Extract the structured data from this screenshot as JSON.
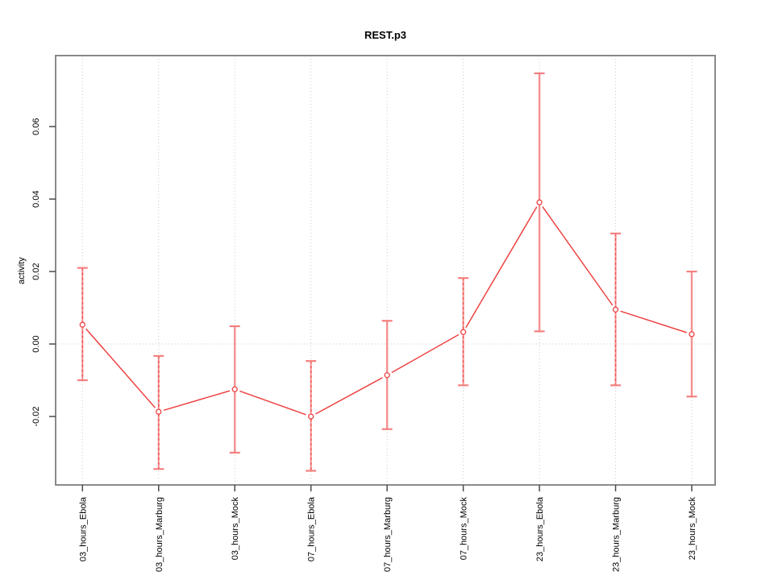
{
  "chart_data": {
    "type": "line",
    "title": "REST.p3",
    "xlabel": "",
    "ylabel": "activity",
    "legend": "none",
    "categories": [
      "03_hours_Ebola",
      "03_hours_Marburg",
      "03_hours_Mock",
      "07_hours_Ebola",
      "07_hours_Marburg",
      "07_hours_Mock",
      "23_hours_Ebola",
      "23_hours_Marburg",
      "23_hours_Mock"
    ],
    "series": [
      {
        "name": "activity",
        "values": [
          0.0053,
          -0.0187,
          -0.0125,
          -0.02,
          -0.0086,
          0.0033,
          0.0391,
          0.0095,
          0.0027
        ],
        "upper": [
          0.021,
          -0.0033,
          0.0049,
          -0.0047,
          0.0064,
          0.0182,
          0.0747,
          0.0305,
          0.02
        ],
        "lower": [
          -0.01,
          -0.0345,
          -0.03,
          -0.035,
          -0.0235,
          -0.0114,
          0.0035,
          -0.0114,
          -0.0145
        ]
      }
    ],
    "error_bars": true,
    "error_bar_styles": [
      "dashed",
      "dashed",
      "solid",
      "dashed",
      "solid",
      "dashed",
      "solid",
      "dashed",
      "solid"
    ],
    "marker": "open-circle",
    "yticks": [
      -0.02,
      0.0,
      0.02,
      0.04,
      0.06
    ],
    "ytick_labels": [
      "-0.02",
      "0.00",
      "0.02",
      "0.04",
      "0.06"
    ],
    "ylim": [
      -0.0389,
      0.0796
    ],
    "grid": {
      "vertical_dotted_per_category": true,
      "horizontal_dotted_at_zero": true
    },
    "colors": {
      "line": "#ee4343",
      "marker": "#ee4343",
      "error_bar": "#f59090",
      "error_bar_dash": "#ef5350",
      "error_bar_cap": "#f48080",
      "grid": "#c9c9c9",
      "box": "#8a8a8a",
      "tick": "#4a4a4a",
      "text": "#000000"
    }
  }
}
